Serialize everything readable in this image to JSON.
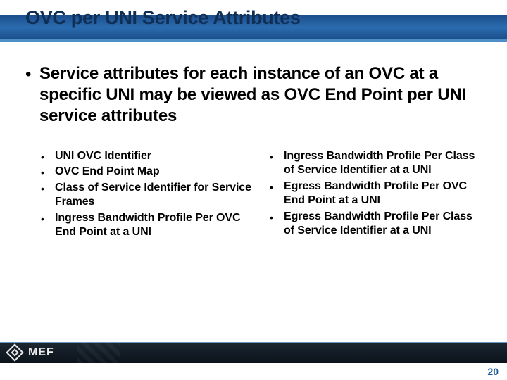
{
  "title": "OVC per UNI Service Attributes",
  "intro": "Service attributes for each instance of an OVC at a specific UNI may be viewed as OVC End Point per UNI service attributes",
  "left_items": [
    "UNI OVC Identifier",
    "OVC End Point Map",
    "Class of Service Identifier for Service Frames",
    "Ingress Bandwidth Profile Per OVC End Point at a UNI"
  ],
  "right_items": [
    "Ingress Bandwidth Profile Per Class of Service Identifier at a UNI",
    "Egress Bandwidth Profile Per OVC End Point at a UNI",
    "Egress Bandwidth Profile Per Class of Service Identifier at a UNI"
  ],
  "logo_text": "MEF",
  "page_number": "20",
  "colors": {
    "title_text": "#0f2f56",
    "band_start": "#1d4e8c",
    "band_end": "#1c4d89",
    "underline": "#4f8fc8",
    "footer_start": "#1d2833",
    "footer_end": "#0b121a",
    "page_number": "#1f5b9a"
  },
  "fonts": {
    "title_size_pt": 20,
    "intro_size_pt": 18,
    "item_size_pt": 12
  }
}
